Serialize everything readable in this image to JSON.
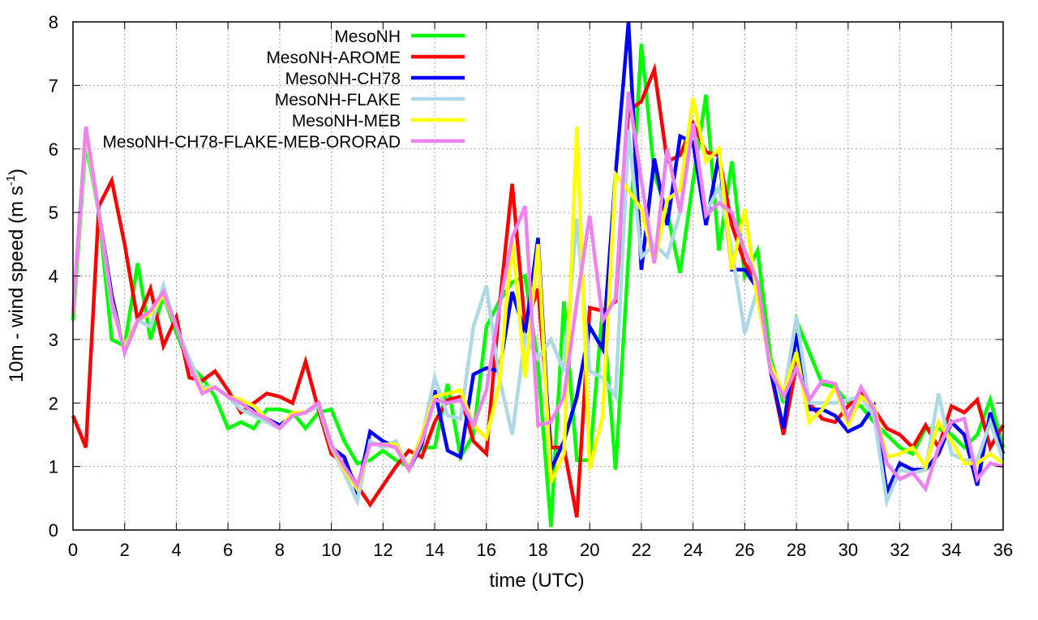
{
  "chart_data": {
    "type": "line",
    "title": "",
    "xlabel": "time (UTC)",
    "ylabel": "10m - wind speed  (m s",
    "ylabel_sup": "-1",
    "ylabel_end": ")",
    "xlim": [
      0,
      36
    ],
    "ylim": [
      0,
      8
    ],
    "xticks": [
      0,
      2,
      4,
      6,
      8,
      10,
      12,
      14,
      16,
      18,
      20,
      22,
      24,
      26,
      28,
      30,
      32,
      34,
      36
    ],
    "yticks": [
      0,
      1,
      2,
      3,
      4,
      5,
      6,
      7,
      8
    ],
    "grid": true,
    "legend_position": "top-left",
    "x_step": 0.5,
    "series": [
      {
        "name": "MesoNH",
        "color": "#00ff00",
        "values": [
          3.3,
          6.1,
          5.0,
          3.0,
          2.9,
          4.2,
          3.0,
          3.7,
          3.1,
          2.6,
          2.4,
          2.1,
          1.6,
          1.7,
          1.6,
          1.9,
          1.9,
          1.85,
          1.6,
          1.85,
          1.9,
          1.4,
          1.05,
          1.1,
          1.25,
          1.1,
          1.0,
          1.3,
          1.3,
          2.3,
          1.15,
          1.5,
          3.2,
          3.6,
          3.9,
          4.0,
          2.6,
          0.05,
          3.6,
          1.1,
          1.1,
          3.5,
          0.95,
          4.3,
          7.65,
          5.6,
          5.0,
          4.05,
          5.5,
          6.85,
          4.4,
          5.8,
          4.0,
          4.4,
          2.7,
          2.0,
          3.3,
          2.8,
          2.3,
          2.25,
          2.0,
          1.95,
          1.7,
          1.5,
          1.3,
          1.2,
          1.6,
          1.6,
          1.5,
          1.3,
          1.5,
          2.05,
          1.3
        ]
      },
      {
        "name": "MesoNH-AROME",
        "color": "#ff0000",
        "values": [
          1.8,
          1.3,
          5.1,
          5.5,
          4.5,
          3.3,
          3.8,
          2.9,
          3.35,
          2.4,
          2.35,
          2.5,
          2.2,
          1.85,
          2.0,
          2.15,
          2.1,
          2.0,
          2.65,
          1.9,
          1.2,
          1.05,
          0.7,
          0.4,
          0.7,
          1.0,
          1.25,
          1.15,
          1.7,
          2.05,
          2.1,
          1.4,
          1.2,
          3.5,
          5.45,
          3.2,
          3.8,
          1.3,
          1.3,
          0.2,
          3.5,
          3.45,
          3.6,
          6.6,
          6.75,
          7.25,
          5.8,
          5.9,
          6.4,
          5.95,
          5.9,
          4.8,
          4.2,
          3.9,
          2.5,
          1.5,
          2.6,
          2.0,
          1.75,
          1.7,
          1.95,
          2.15,
          1.9,
          1.6,
          1.5,
          1.3,
          1.65,
          1.3,
          1.95,
          1.85,
          2.05,
          1.3,
          1.65
        ]
      },
      {
        "name": "MesoNH-CH78",
        "color": "#0000ff",
        "values": [
          3.4,
          6.3,
          5.0,
          3.7,
          2.8,
          3.3,
          3.4,
          3.7,
          3.2,
          2.6,
          2.2,
          2.25,
          2.1,
          2.0,
          1.9,
          1.75,
          1.65,
          1.8,
          1.85,
          2.0,
          1.3,
          1.15,
          0.6,
          1.55,
          1.4,
          1.3,
          0.95,
          1.35,
          2.2,
          1.25,
          1.15,
          2.45,
          2.55,
          2.5,
          3.75,
          3.1,
          4.6,
          0.95,
          1.4,
          2.1,
          3.2,
          2.85,
          5.6,
          8.0,
          4.1,
          5.85,
          4.8,
          6.2,
          6.1,
          4.8,
          5.9,
          4.1,
          4.1,
          3.8,
          2.5,
          1.6,
          3.1,
          1.9,
          1.9,
          1.8,
          1.55,
          1.65,
          1.95,
          0.6,
          1.05,
          0.95,
          0.95,
          1.2,
          1.7,
          1.5,
          0.7,
          1.85,
          1.2
        ]
      },
      {
        "name": "MesoNH-FLAKE",
        "color": "#add8e6",
        "values": [
          3.4,
          6.2,
          5.0,
          3.5,
          2.9,
          3.3,
          3.2,
          3.85,
          3.2,
          2.7,
          2.25,
          2.25,
          2.1,
          1.9,
          1.8,
          1.7,
          1.6,
          1.8,
          1.85,
          1.95,
          1.3,
          0.9,
          0.45,
          1.4,
          1.3,
          1.4,
          0.95,
          1.45,
          2.4,
          1.8,
          1.75,
          3.2,
          3.85,
          2.4,
          1.5,
          3.05,
          2.7,
          3.0,
          2.5,
          4.9,
          2.5,
          2.4,
          2.1,
          6.3,
          4.3,
          4.5,
          4.3,
          5.0,
          6.4,
          5.0,
          5.4,
          4.4,
          3.1,
          3.8,
          2.5,
          2.1,
          3.35,
          2.0,
          2.0,
          2.0,
          2.05,
          2.1,
          1.8,
          0.45,
          0.95,
          0.9,
          0.95,
          2.15,
          1.2,
          1.1,
          1.1,
          1.7,
          1.1
        ]
      },
      {
        "name": "MesoNH-MEB",
        "color": "#ffff00",
        "values": [
          3.4,
          6.3,
          5.0,
          3.6,
          2.85,
          3.3,
          3.4,
          3.7,
          3.2,
          2.6,
          2.2,
          2.25,
          2.1,
          2.05,
          1.95,
          1.75,
          1.6,
          1.85,
          1.85,
          2.0,
          1.35,
          0.95,
          0.65,
          1.35,
          1.35,
          1.35,
          0.95,
          1.5,
          2.1,
          2.15,
          2.2,
          1.65,
          1.45,
          2.3,
          4.6,
          2.4,
          4.5,
          0.75,
          1.2,
          6.35,
          0.95,
          1.8,
          5.6,
          5.35,
          5.05,
          4.2,
          5.2,
          5.35,
          6.8,
          5.8,
          6.0,
          4.1,
          5.05,
          3.6,
          2.6,
          2.15,
          2.8,
          1.7,
          1.9,
          2.25,
          1.65,
          2.1,
          1.95,
          1.15,
          1.2,
          1.3,
          1.0,
          1.7,
          1.4,
          1.05,
          1.05,
          1.2,
          1.05
        ]
      },
      {
        "name": "MesoNH-CH78-FLAKE-MEB-ORORAD",
        "color": "#ee82ee",
        "values": [
          3.4,
          6.35,
          5.0,
          3.6,
          2.8,
          3.3,
          3.45,
          3.75,
          3.2,
          2.6,
          2.15,
          2.25,
          2.1,
          2.0,
          1.85,
          1.75,
          1.6,
          1.8,
          1.85,
          2.0,
          1.35,
          1.0,
          0.7,
          1.35,
          1.35,
          1.3,
          0.95,
          1.4,
          2.05,
          2.0,
          2.05,
          1.65,
          2.2,
          3.5,
          4.6,
          5.1,
          1.65,
          1.7,
          2.1,
          3.6,
          4.95,
          3.3,
          3.65,
          6.9,
          5.5,
          4.2,
          6.0,
          5.0,
          6.4,
          4.95,
          5.15,
          5.0,
          4.4,
          3.9,
          2.5,
          2.1,
          2.55,
          2.05,
          2.35,
          2.3,
          1.75,
          2.25,
          1.9,
          1.05,
          0.8,
          0.9,
          0.65,
          1.3,
          1.7,
          1.75,
          0.8,
          1.05,
          1.0
        ]
      }
    ]
  }
}
